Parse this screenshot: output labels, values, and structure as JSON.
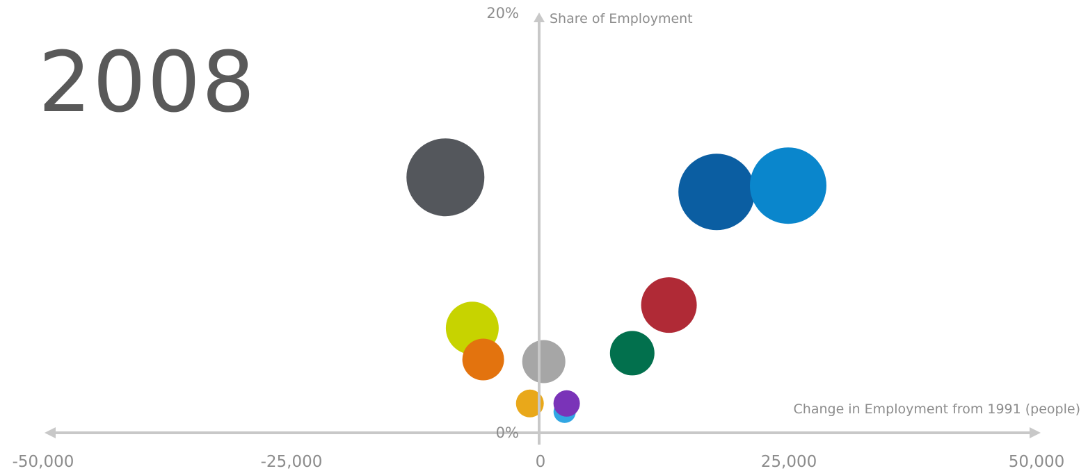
{
  "year_label": "2008",
  "chart_data": {
    "type": "scatter",
    "subtype": "bubble",
    "xlabel": "Change in Employment  from 1991 (people)",
    "ylabel": "Share of Employment",
    "xlim": [
      -50000,
      50000
    ],
    "ylim": [
      0,
      20
    ],
    "x_ticks": [
      "-50,000",
      "-25,000",
      "0",
      "25,000",
      "50,000"
    ],
    "y_ticks": [
      "0%",
      "20%"
    ],
    "grid": false,
    "legend": "none",
    "axis_color": "#c8c8c8",
    "points": [
      {
        "x": -9500,
        "y": 12.2,
        "size": 5.6,
        "color": "#54575c"
      },
      {
        "x": 17800,
        "y": 11.5,
        "size": 5.5,
        "color": "#0b5ea2"
      },
      {
        "x": 25000,
        "y": 11.8,
        "size": 5.5,
        "color": "#0a86cc"
      },
      {
        "x": 13000,
        "y": 6.1,
        "size": 4.0,
        "color": "#b02a36"
      },
      {
        "x": -6800,
        "y": 5.0,
        "size": 3.8,
        "color": "#c7d300"
      },
      {
        "x": 9300,
        "y": 3.8,
        "size": 3.2,
        "color": "#02704d"
      },
      {
        "x": -5700,
        "y": 3.5,
        "size": 3.0,
        "color": "#e3730e"
      },
      {
        "x": 400,
        "y": 3.4,
        "size": 3.1,
        "color": "#a6a6a6"
      },
      {
        "x": -1000,
        "y": 1.4,
        "size": 2.0,
        "color": "#e9a81a"
      },
      {
        "x": 2500,
        "y": 1.0,
        "size": 1.6,
        "color": "#31a6e3"
      },
      {
        "x": 2700,
        "y": 1.4,
        "size": 1.9,
        "color": "#7a33b8"
      }
    ]
  }
}
